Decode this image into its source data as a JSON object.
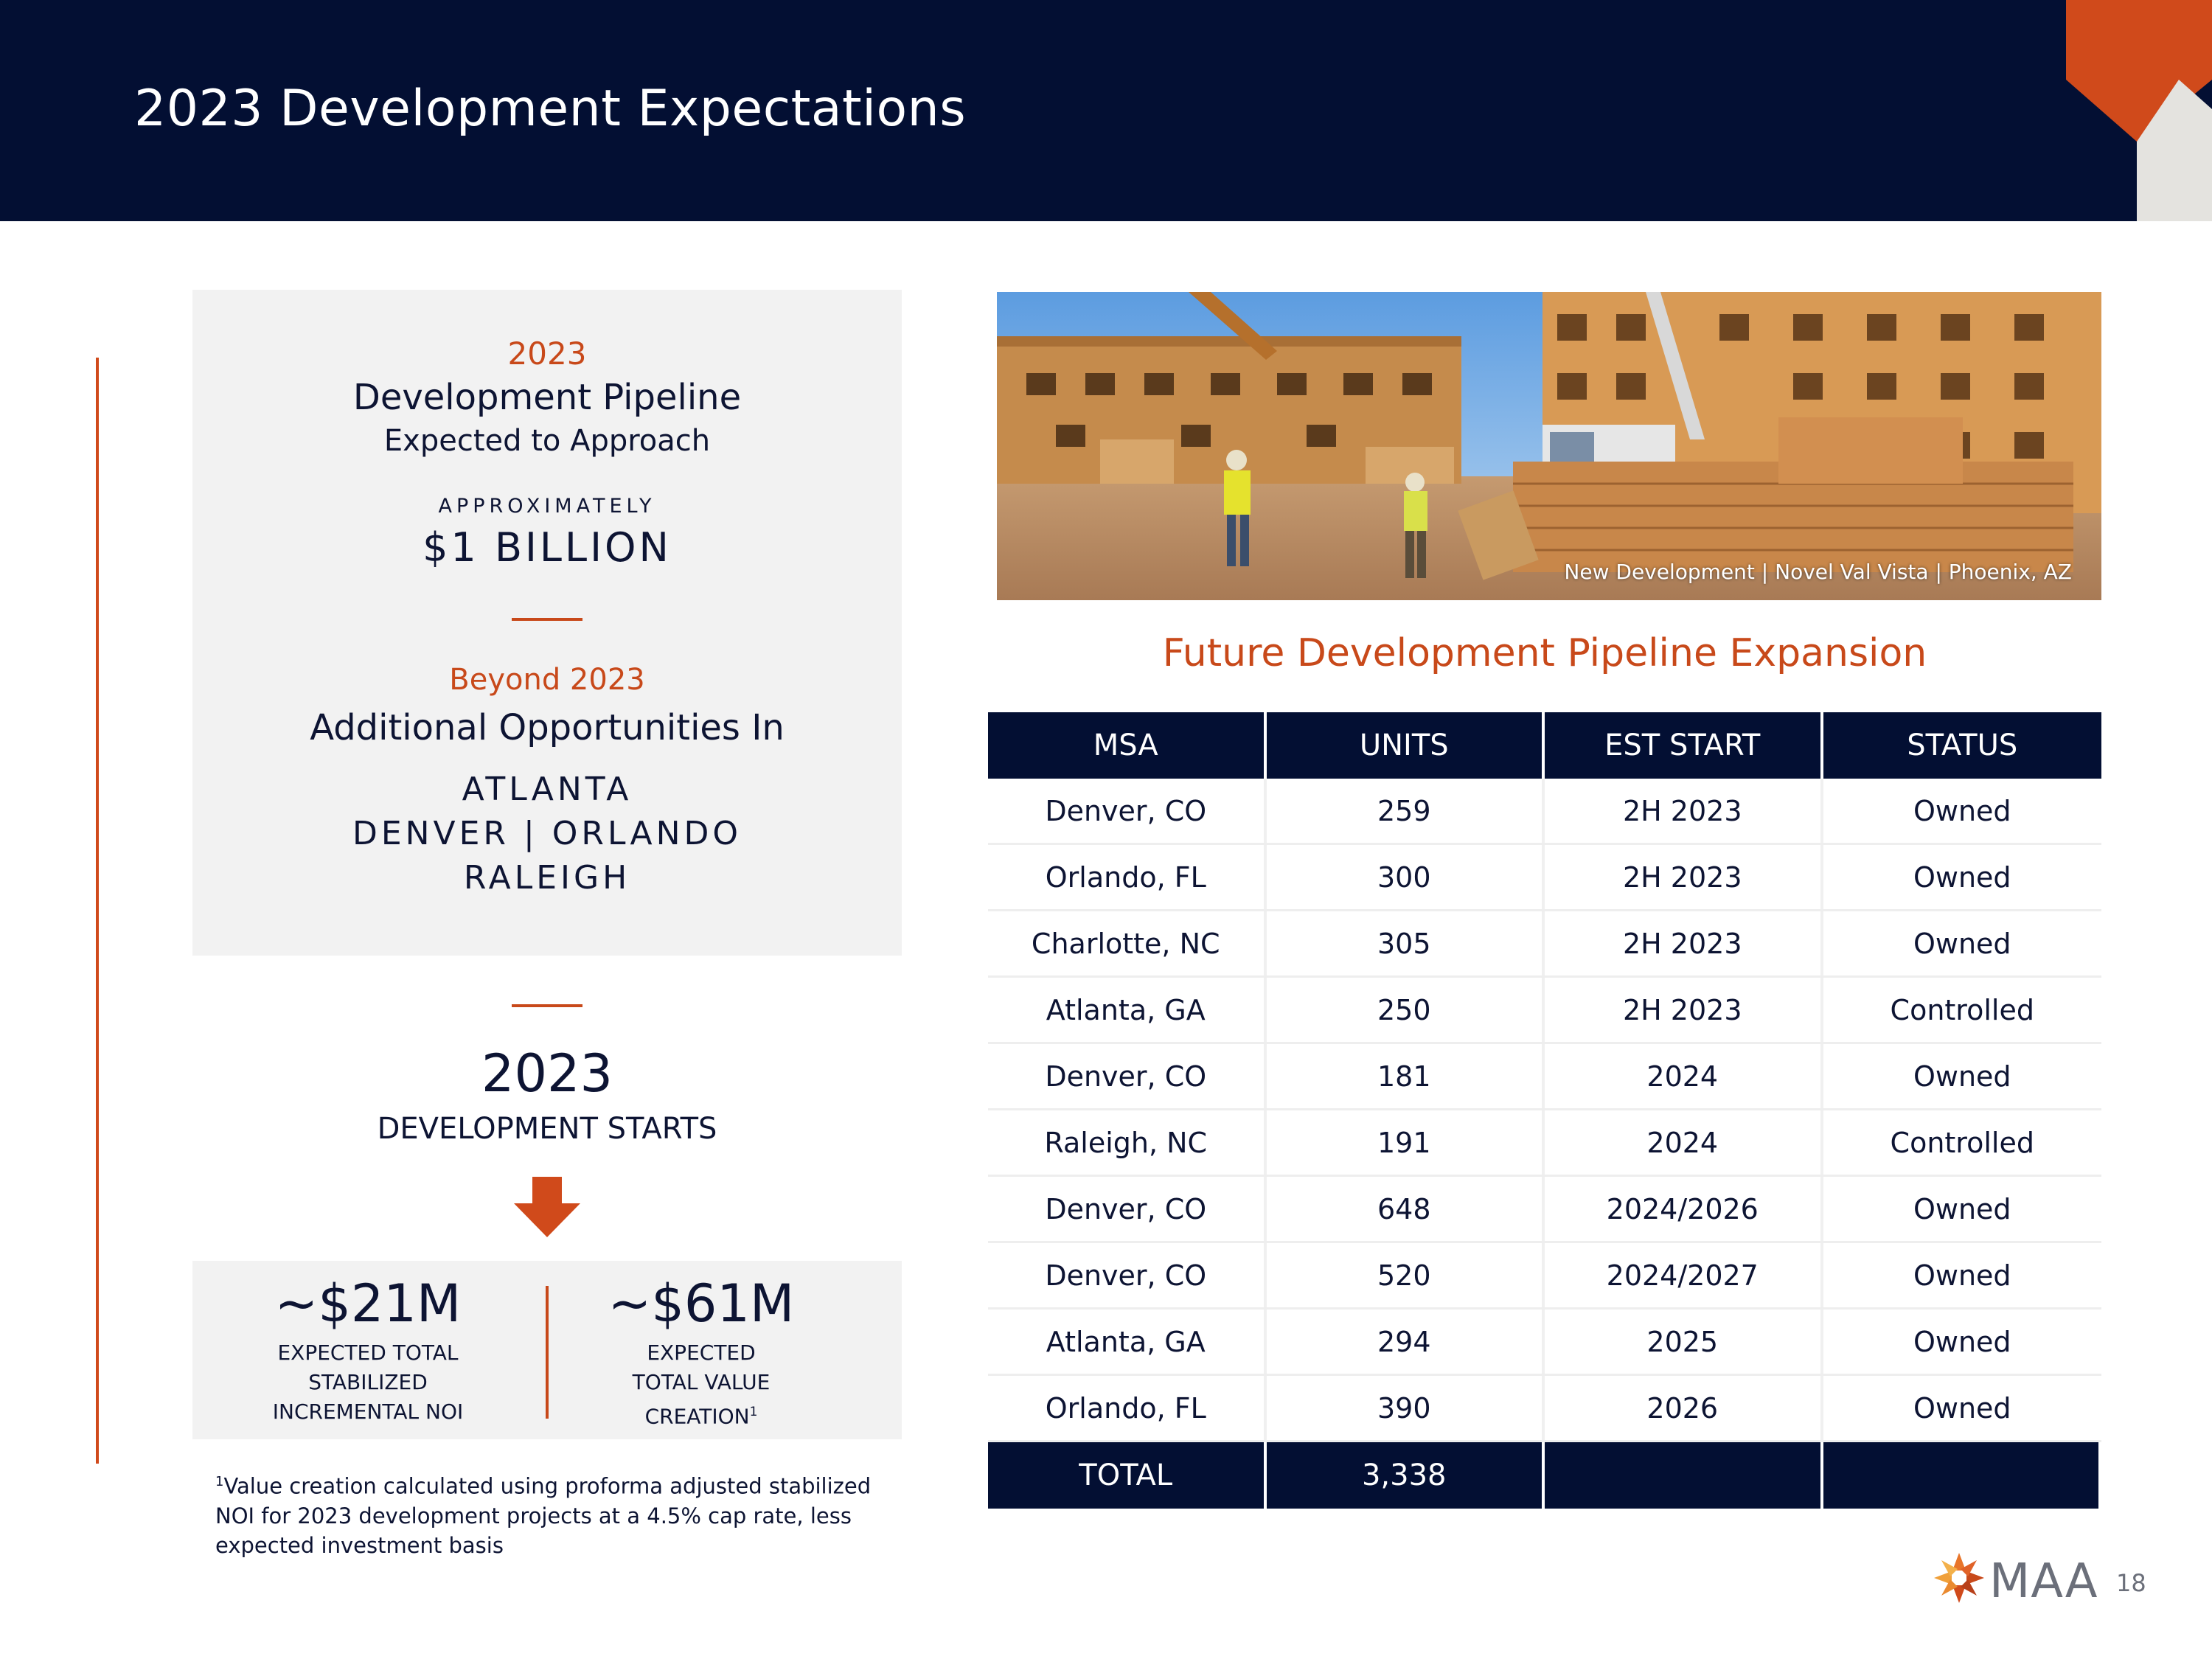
{
  "header": {
    "title": "2023 Development Expectations"
  },
  "pipeline": {
    "year": "2023",
    "heading": "Development Pipeline",
    "subheading": "Expected to Approach",
    "approx_label": "APPROXIMATELY",
    "amount": "$1 BILLION",
    "beyond_label": "Beyond 2023",
    "additional_label": "Additional Opportunities In",
    "cities": [
      "ATLANTA",
      "DENVER | ORLANDO",
      "RALEIGH"
    ]
  },
  "starts": {
    "year": "2023",
    "label": "DEVELOPMENT STARTS"
  },
  "metrics": [
    {
      "value": "~$21M",
      "label_lines": [
        "EXPECTED TOTAL",
        "STABILIZED",
        "INCREMENTAL NOI"
      ]
    },
    {
      "value": "~$61M",
      "label_lines": [
        "EXPECTED",
        "TOTAL VALUE",
        "CREATION"
      ],
      "footnote_ref": "1"
    }
  ],
  "footnote": {
    "marker": "1",
    "text": "Value creation calculated using proforma adjusted stabilized NOI for 2023 development projects at a 4.5% cap rate, less expected investment basis"
  },
  "photo": {
    "caption": "New Development | Novel Val Vista | Phoenix, AZ"
  },
  "table": {
    "title": "Future Development Pipeline Expansion",
    "columns": [
      "MSA",
      "UNITS",
      "EST START",
      "STATUS"
    ],
    "rows": [
      [
        "Denver, CO",
        "259",
        "2H 2023",
        "Owned"
      ],
      [
        "Orlando, FL",
        "300",
        "2H 2023",
        "Owned"
      ],
      [
        "Charlotte, NC",
        "305",
        "2H 2023",
        "Owned"
      ],
      [
        "Atlanta, GA",
        "250",
        "2H 2023",
        "Controlled"
      ],
      [
        "Denver, CO",
        "181",
        "2024",
        "Owned"
      ],
      [
        "Raleigh, NC",
        "191",
        "2024",
        "Controlled"
      ],
      [
        "Denver, CO",
        "648",
        "2024/2026",
        "Owned"
      ],
      [
        "Denver, CO",
        "520",
        "2024/2027",
        "Owned"
      ],
      [
        "Atlanta, GA",
        "294",
        "2025",
        "Owned"
      ],
      [
        "Orlando, FL",
        "390",
        "2026",
        "Owned"
      ]
    ],
    "total_label": "TOTAL",
    "total_units": "3,338"
  },
  "footer": {
    "logo_text": "MAA",
    "page_number": "18"
  },
  "colors": {
    "navy": "#030f33",
    "accent": "#c8491a",
    "panel": "#f2f2f2"
  }
}
